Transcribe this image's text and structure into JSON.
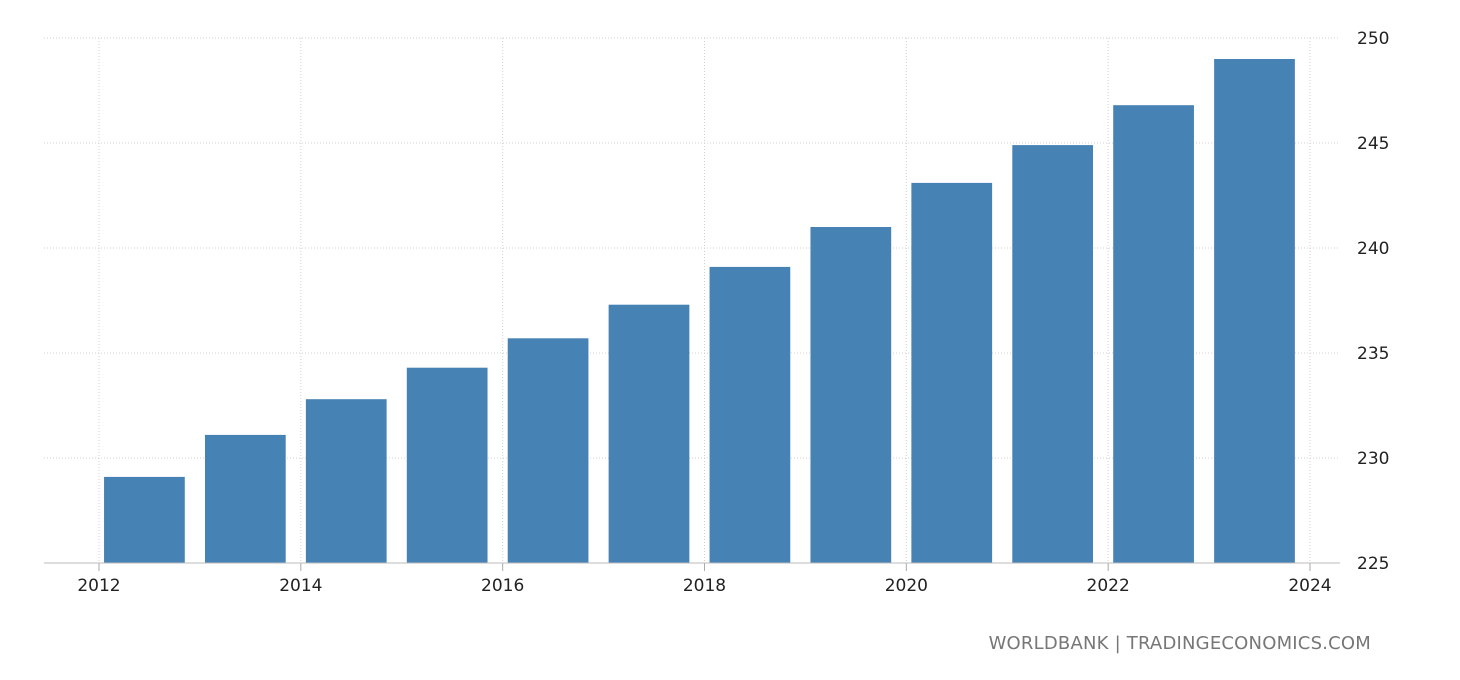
{
  "chart_data": {
    "type": "bar",
    "title": "",
    "xlabel": "",
    "ylabel": "",
    "categories": [
      "2012",
      "2013",
      "2014",
      "2015",
      "2016",
      "2017",
      "2018",
      "2019",
      "2020",
      "2021",
      "2022",
      "2023"
    ],
    "values": [
      229.1,
      231.1,
      232.8,
      234.3,
      235.7,
      237.3,
      239.1,
      241.0,
      243.1,
      244.9,
      246.8,
      249.0
    ],
    "ylim": [
      225,
      250
    ],
    "yticks": [
      "225",
      "230",
      "235",
      "240",
      "245",
      "250"
    ],
    "xticks": [
      "2012",
      "2014",
      "2016",
      "2018",
      "2020",
      "2022",
      "2024"
    ],
    "xlim": [
      2012,
      2024
    ],
    "y_axis_side": "right",
    "grid": true,
    "bar_color": "#4682b4"
  },
  "source": "WORLDBANK | TRADINGECONOMICS.COM"
}
